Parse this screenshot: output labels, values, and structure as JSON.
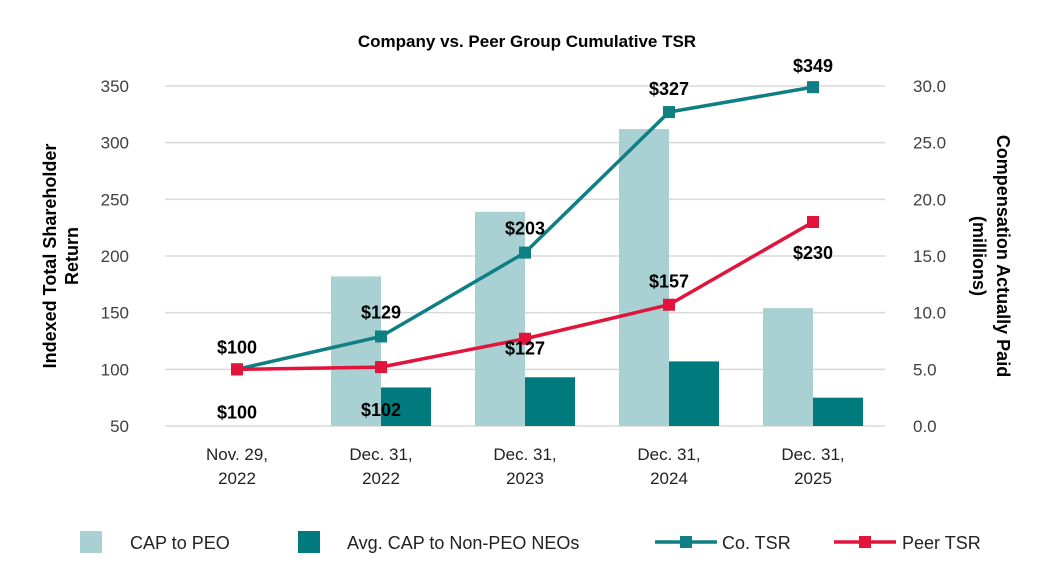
{
  "chart_data": {
    "type": "bar",
    "title": "Company vs. Peer Group Cumulative TSR",
    "categories": [
      [
        "Nov. 29,",
        "2022"
      ],
      [
        "Dec. 31,",
        "2022"
      ],
      [
        "Dec. 31,",
        "2023"
      ],
      [
        "Dec. 31,",
        "2024"
      ],
      [
        "Dec. 31,",
        "2025"
      ]
    ],
    "y_left": {
      "label_lines": [
        "Indexed Total Shareholder",
        "Return"
      ],
      "range": [
        50,
        350
      ],
      "ticks": [
        50,
        100,
        150,
        200,
        250,
        300,
        350
      ]
    },
    "y_right": {
      "label_lines": [
        "Compensation Actually Paid",
        "(millions)"
      ],
      "range": [
        0,
        30
      ],
      "ticks": [
        "0.0",
        "5.0",
        "10.0",
        "15.0",
        "20.0",
        "25.0",
        "30.0"
      ]
    },
    "bar_series": [
      {
        "name": "CAP to PEO",
        "axis": "right",
        "color": "#a9d1d4",
        "values": [
          null,
          13.2,
          18.9,
          26.2,
          10.4
        ]
      },
      {
        "name": "Avg. CAP to Non-PEO NEOs",
        "axis": "right",
        "color": "#007a7c",
        "values": [
          null,
          3.4,
          4.3,
          5.7,
          2.5
        ]
      }
    ],
    "line_series": [
      {
        "name": "Co. TSR",
        "axis": "left",
        "color": "#0e7f82",
        "values": [
          100,
          129,
          203,
          327,
          349
        ],
        "labels": [
          "$100",
          "$129",
          "$203",
          "$327",
          "$349"
        ]
      },
      {
        "name": "Peer TSR",
        "axis": "left",
        "color": "#e3143c",
        "values": [
          100,
          102,
          127,
          157,
          230
        ],
        "labels": [
          "$100",
          "$102",
          "$127",
          "$157",
          "$230"
        ]
      }
    ],
    "grid": true,
    "legend_position": "bottom"
  }
}
